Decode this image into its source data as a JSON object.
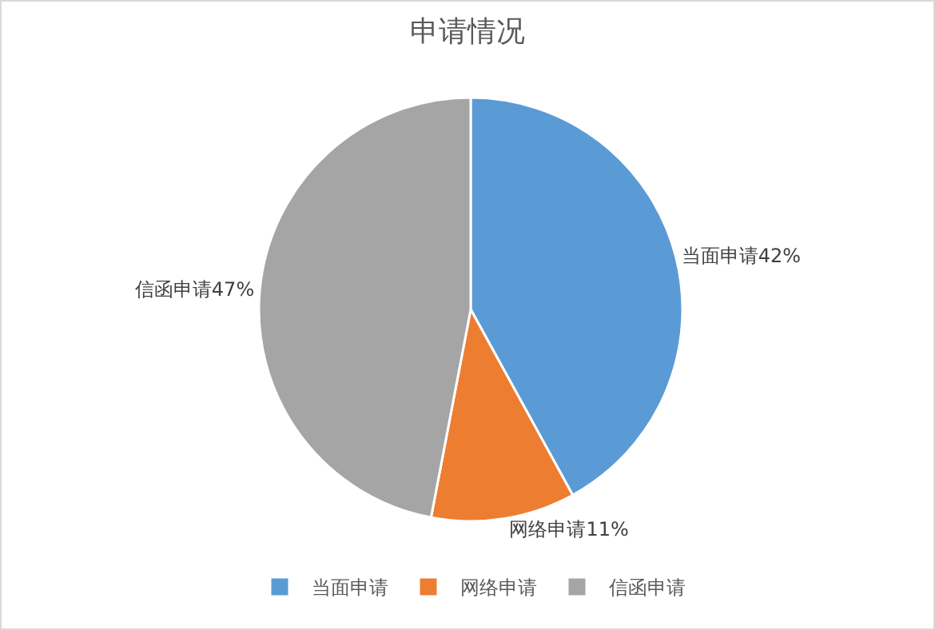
{
  "chart_data": {
    "type": "pie",
    "title": "申请情况",
    "categories": [
      "当面申请",
      "网络申请",
      "信函申请"
    ],
    "values": [
      42,
      11,
      47
    ],
    "value_labels": [
      "42%",
      "11%",
      "47%"
    ],
    "colors": [
      "#5b9bd5",
      "#ed7d31",
      "#a5a5a5"
    ],
    "legend": "bottom"
  }
}
